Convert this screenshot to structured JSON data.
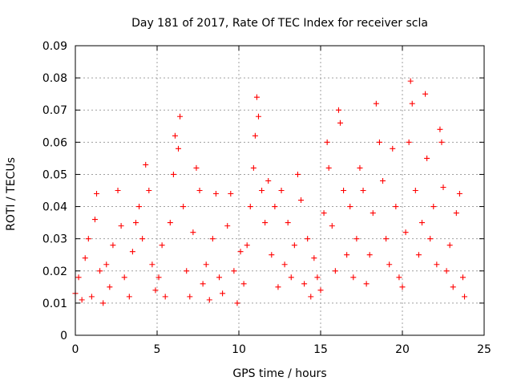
{
  "chart_data": {
    "type": "scatter",
    "title": "Day 181 of 2017, Rate Of TEC Index for receiver scla",
    "xlabel": "GPS time / hours",
    "ylabel": "ROTI / TECUs",
    "xlim": [
      0,
      25
    ],
    "ylim": [
      0,
      0.09
    ],
    "xticks": [
      0,
      5,
      10,
      15,
      20,
      25
    ],
    "xtick_labels": [
      "0",
      "5",
      "10",
      "15",
      "20",
      "25"
    ],
    "yticks": [
      0,
      0.01,
      0.02,
      0.03,
      0.04,
      0.05,
      0.06,
      0.07,
      0.08,
      0.09
    ],
    "ytick_labels": [
      "0",
      "0.01",
      "0.02",
      "0.03",
      "0.04",
      "0.05",
      "0.06",
      "0.07",
      "0.08",
      "0.09"
    ],
    "grid": true,
    "marker": "+",
    "color": "#ff0000",
    "series": [
      {
        "name": "",
        "points": [
          [
            0.0,
            0.013
          ],
          [
            0.2,
            0.018
          ],
          [
            0.4,
            0.011
          ],
          [
            0.6,
            0.024
          ],
          [
            0.8,
            0.03
          ],
          [
            1.0,
            0.012
          ],
          [
            1.2,
            0.036
          ],
          [
            1.3,
            0.044
          ],
          [
            1.5,
            0.02
          ],
          [
            1.7,
            0.01
          ],
          [
            1.9,
            0.022
          ],
          [
            2.1,
            0.015
          ],
          [
            2.3,
            0.028
          ],
          [
            2.6,
            0.045
          ],
          [
            2.8,
            0.034
          ],
          [
            3.0,
            0.018
          ],
          [
            3.3,
            0.012
          ],
          [
            3.5,
            0.026
          ],
          [
            3.7,
            0.035
          ],
          [
            3.9,
            0.04
          ],
          [
            4.1,
            0.03
          ],
          [
            4.3,
            0.053
          ],
          [
            4.5,
            0.045
          ],
          [
            4.7,
            0.022
          ],
          [
            4.9,
            0.014
          ],
          [
            5.1,
            0.018
          ],
          [
            5.3,
            0.028
          ],
          [
            5.5,
            0.012
          ],
          [
            5.8,
            0.035
          ],
          [
            6.0,
            0.05
          ],
          [
            6.1,
            0.062
          ],
          [
            6.3,
            0.058
          ],
          [
            6.4,
            0.068
          ],
          [
            6.6,
            0.04
          ],
          [
            6.8,
            0.02
          ],
          [
            7.0,
            0.012
          ],
          [
            7.2,
            0.032
          ],
          [
            7.4,
            0.052
          ],
          [
            7.6,
            0.045
          ],
          [
            7.8,
            0.016
          ],
          [
            8.0,
            0.022
          ],
          [
            8.2,
            0.011
          ],
          [
            8.4,
            0.03
          ],
          [
            8.6,
            0.044
          ],
          [
            8.8,
            0.018
          ],
          [
            9.0,
            0.013
          ],
          [
            9.3,
            0.034
          ],
          [
            9.5,
            0.044
          ],
          [
            9.7,
            0.02
          ],
          [
            9.9,
            0.01
          ],
          [
            10.1,
            0.026
          ],
          [
            10.3,
            0.016
          ],
          [
            10.5,
            0.028
          ],
          [
            10.7,
            0.04
          ],
          [
            10.9,
            0.052
          ],
          [
            11.0,
            0.062
          ],
          [
            11.1,
            0.074
          ],
          [
            11.2,
            0.068
          ],
          [
            11.4,
            0.045
          ],
          [
            11.6,
            0.035
          ],
          [
            11.8,
            0.048
          ],
          [
            12.0,
            0.025
          ],
          [
            12.2,
            0.04
          ],
          [
            12.4,
            0.015
          ],
          [
            12.6,
            0.045
          ],
          [
            12.8,
            0.022
          ],
          [
            13.0,
            0.035
          ],
          [
            13.2,
            0.018
          ],
          [
            13.4,
            0.028
          ],
          [
            13.6,
            0.05
          ],
          [
            13.8,
            0.042
          ],
          [
            14.0,
            0.016
          ],
          [
            14.2,
            0.03
          ],
          [
            14.4,
            0.012
          ],
          [
            14.6,
            0.024
          ],
          [
            14.8,
            0.018
          ],
          [
            15.0,
            0.014
          ],
          [
            15.2,
            0.038
          ],
          [
            15.4,
            0.06
          ],
          [
            15.5,
            0.052
          ],
          [
            15.7,
            0.034
          ],
          [
            15.9,
            0.02
          ],
          [
            16.1,
            0.07
          ],
          [
            16.2,
            0.066
          ],
          [
            16.4,
            0.045
          ],
          [
            16.6,
            0.025
          ],
          [
            16.8,
            0.04
          ],
          [
            17.0,
            0.018
          ],
          [
            17.2,
            0.03
          ],
          [
            17.4,
            0.052
          ],
          [
            17.6,
            0.045
          ],
          [
            17.8,
            0.016
          ],
          [
            18.0,
            0.025
          ],
          [
            18.2,
            0.038
          ],
          [
            18.4,
            0.072
          ],
          [
            18.6,
            0.06
          ],
          [
            18.8,
            0.048
          ],
          [
            19.0,
            0.03
          ],
          [
            19.2,
            0.022
          ],
          [
            19.4,
            0.058
          ],
          [
            19.6,
            0.04
          ],
          [
            19.8,
            0.018
          ],
          [
            20.0,
            0.015
          ],
          [
            20.2,
            0.032
          ],
          [
            20.4,
            0.06
          ],
          [
            20.5,
            0.079
          ],
          [
            20.6,
            0.072
          ],
          [
            20.8,
            0.045
          ],
          [
            21.0,
            0.025
          ],
          [
            21.2,
            0.035
          ],
          [
            21.4,
            0.075
          ],
          [
            21.5,
            0.055
          ],
          [
            21.7,
            0.03
          ],
          [
            21.9,
            0.04
          ],
          [
            22.1,
            0.022
          ],
          [
            22.3,
            0.064
          ],
          [
            22.4,
            0.06
          ],
          [
            22.5,
            0.046
          ],
          [
            22.7,
            0.02
          ],
          [
            22.9,
            0.028
          ],
          [
            23.1,
            0.015
          ],
          [
            23.3,
            0.038
          ],
          [
            23.5,
            0.044
          ],
          [
            23.7,
            0.018
          ],
          [
            23.8,
            0.012
          ]
        ]
      }
    ]
  }
}
